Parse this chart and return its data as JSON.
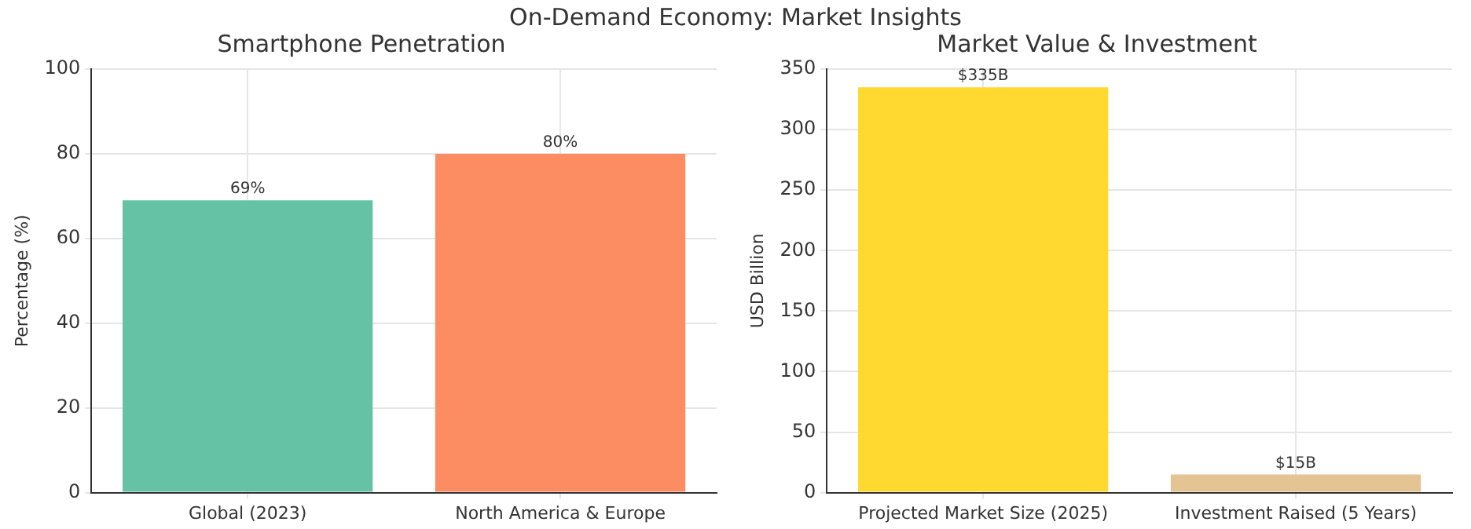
{
  "chart_data": [
    {
      "type": "bar",
      "title": "Smartphone Penetration",
      "ylabel": "Percentage (%)",
      "categories": [
        "Global (2023)",
        "North America & Europe"
      ],
      "values": [
        69,
        80
      ],
      "colors": [
        "#66c2a5",
        "#fc8d62"
      ],
      "value_labels": [
        "69%",
        "80%"
      ],
      "ylim": [
        0,
        100
      ],
      "yticks": [
        0,
        20,
        40,
        60,
        80,
        100
      ],
      "grid": true,
      "annotations": [
        "On-Demand Economy: Market Insights"
      ]
    },
    {
      "type": "bar",
      "title": "Market Value & Investment",
      "ylabel": "USD Billion",
      "categories": [
        "Projected Market Size (2025)",
        "Investment Raised (5 Years)"
      ],
      "values": [
        335,
        15
      ],
      "colors": [
        "#ffd92f",
        "#e5c494"
      ],
      "value_labels": [
        "$335B",
        "$15B"
      ],
      "ylim": [
        0,
        350
      ],
      "yticks": [
        0,
        50,
        100,
        150,
        200,
        250,
        300,
        350
      ],
      "grid": true
    }
  ]
}
